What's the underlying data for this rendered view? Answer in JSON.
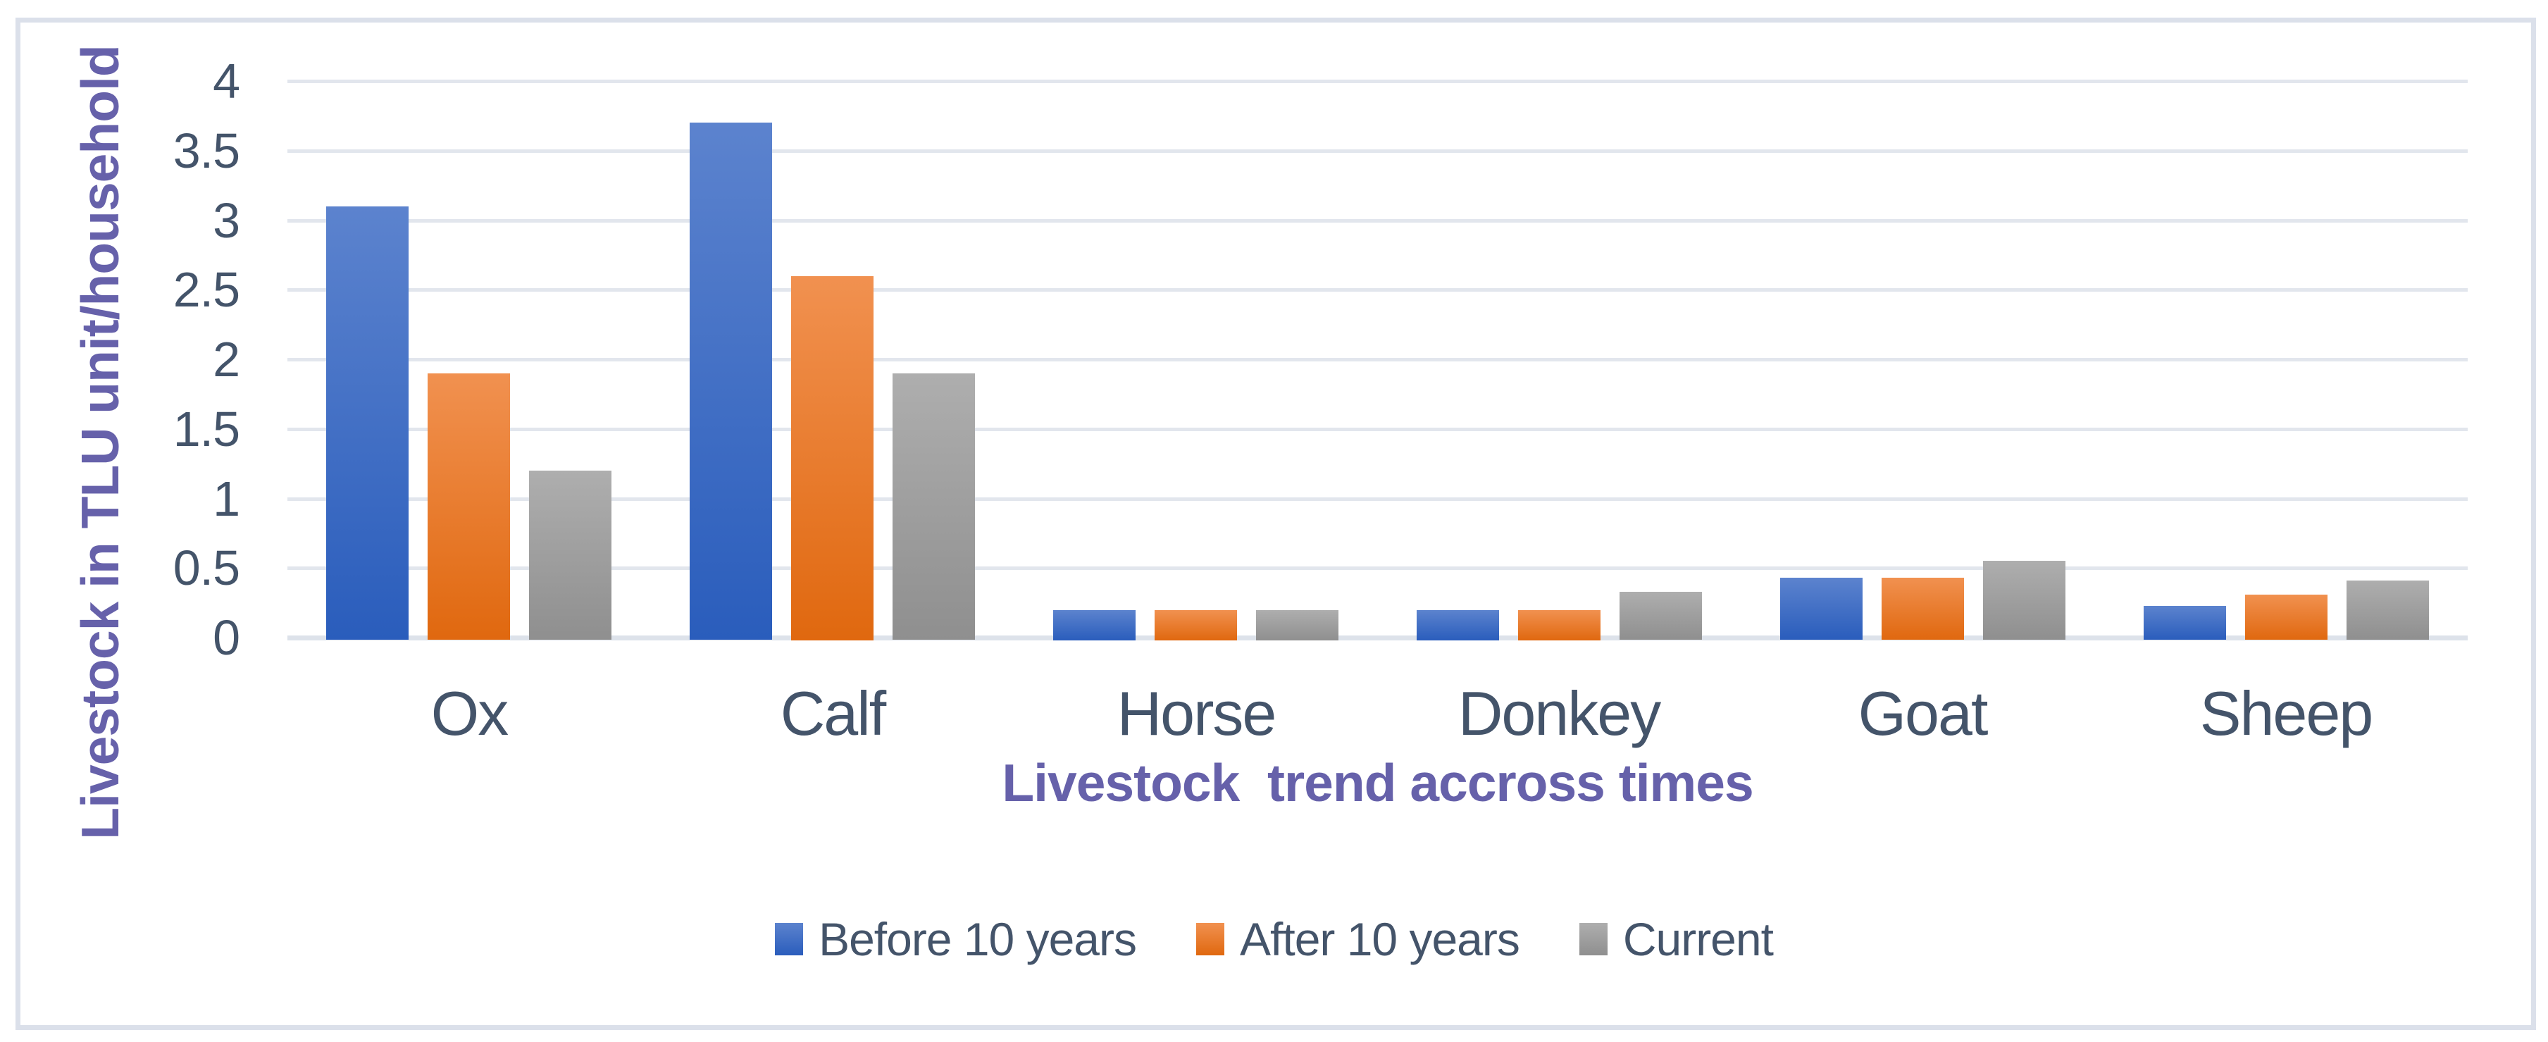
{
  "figure": {
    "y_axis_title": "Livestock in TLU unit/household",
    "x_axis_title": "Livestock  trend accross times"
  },
  "colors": {
    "series": [
      {
        "name": "Before 10 years",
        "top": "#5C83CE",
        "bottom": "#2A5DBC"
      },
      {
        "name": "After 10 years",
        "top": "#F19150",
        "bottom": "#E0680F"
      },
      {
        "name": "Current",
        "top": "#AEAEAE",
        "bottom": "#8F8F8F"
      }
    ],
    "gridline": "#E2E6ED",
    "baseline": "#DDE2EA",
    "axis_text": "#44546A",
    "title_text": "#6661AA",
    "frame_border": "#DBE0EA"
  },
  "chart_data": {
    "type": "bar",
    "title": "",
    "categories": [
      "Ox",
      "Calf",
      "Horse",
      "Donkey",
      "Goat",
      "Sheep"
    ],
    "series": [
      {
        "name": "Before 10 years",
        "values": [
          3.1,
          3.7,
          0.2,
          0.2,
          0.43,
          0.23
        ]
      },
      {
        "name": "After 10 years",
        "values": [
          1.9,
          2.6,
          0.2,
          0.2,
          0.43,
          0.31
        ]
      },
      {
        "name": "Current",
        "values": [
          1.2,
          1.9,
          0.2,
          0.33,
          0.55,
          0.41
        ]
      }
    ],
    "xlabel": "Livestock  trend accross times",
    "ylabel": "Livestock in TLU unit/household",
    "ylim": [
      0,
      4
    ],
    "ytick_step": 0.5,
    "ytick_labels": [
      "0",
      "0.5",
      "1",
      "1.5",
      "2",
      "2.5",
      "3",
      "3.5",
      "4"
    ],
    "grid": true,
    "legend_position": "bottom"
  }
}
